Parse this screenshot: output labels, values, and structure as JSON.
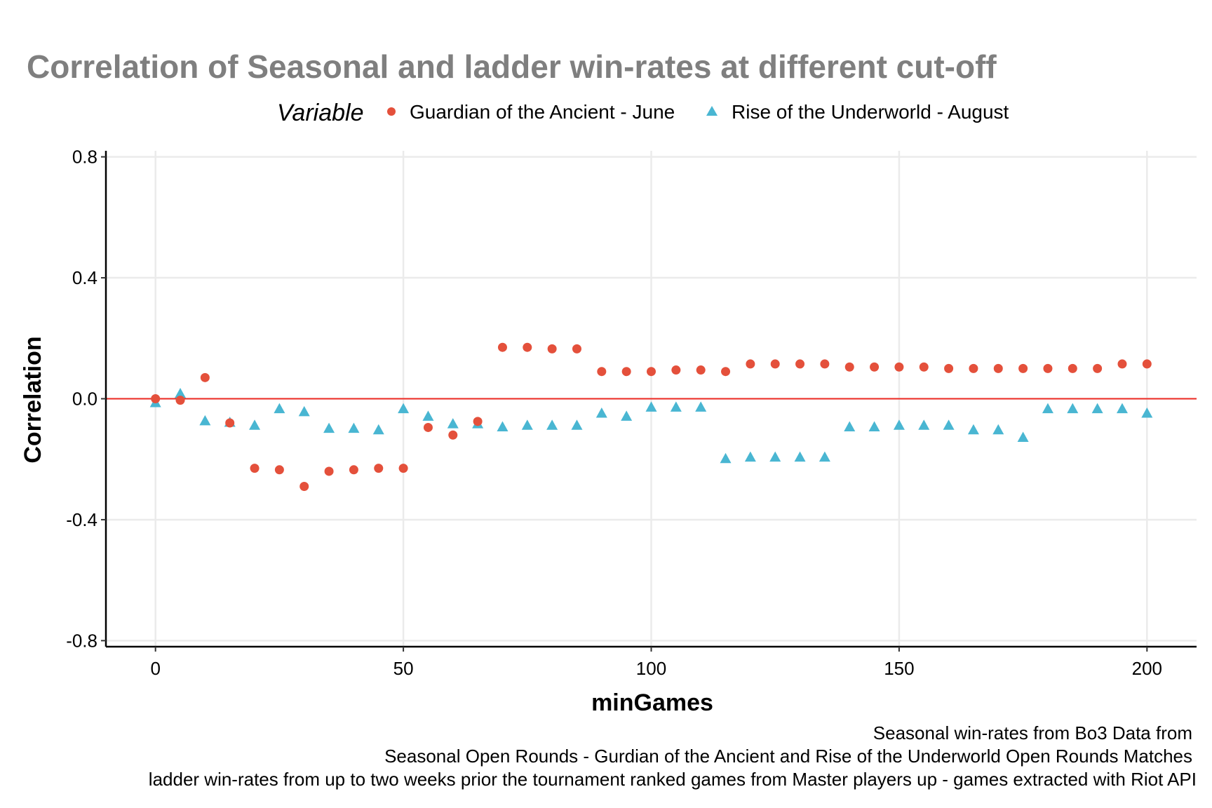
{
  "chart_data": {
    "type": "scatter",
    "title": "Correlation of Seasonal and ladder win-rates at different cut-off",
    "xlabel": "minGames",
    "ylabel": "Correlation",
    "xlim": [
      -10,
      210
    ],
    "ylim": [
      -0.82,
      0.82
    ],
    "x_ticks": [
      0,
      50,
      100,
      150,
      200
    ],
    "x_tick_labels": [
      "0",
      "50",
      "100",
      "150",
      "200"
    ],
    "y_ticks": [
      0.8,
      0.4,
      0.0,
      -0.4,
      -0.8
    ],
    "y_tick_labels": [
      "0.8",
      "0.4",
      "0.0",
      "-0.4",
      "-0.8"
    ],
    "grid": true,
    "reference_line": {
      "y": 0.0,
      "color": "#ee2a24"
    },
    "legend": {
      "title": "Variable",
      "placement": "top"
    },
    "x": [
      0,
      5,
      10,
      15,
      20,
      25,
      30,
      35,
      40,
      45,
      50,
      55,
      60,
      65,
      70,
      75,
      80,
      85,
      90,
      95,
      100,
      105,
      110,
      115,
      120,
      125,
      130,
      135,
      140,
      145,
      150,
      155,
      160,
      165,
      170,
      175,
      180,
      185,
      190,
      195,
      200
    ],
    "series": [
      {
        "name": "Guardian of the Ancient - June",
        "marker": "circle",
        "color": "#e4503b",
        "values": [
          0.0,
          -0.005,
          0.07,
          -0.08,
          -0.23,
          -0.235,
          -0.29,
          -0.24,
          -0.235,
          -0.23,
          -0.23,
          -0.095,
          -0.12,
          -0.075,
          0.17,
          0.17,
          0.165,
          0.165,
          0.09,
          0.09,
          0.09,
          0.095,
          0.095,
          0.09,
          0.115,
          0.115,
          0.115,
          0.115,
          0.105,
          0.105,
          0.105,
          0.105,
          0.1,
          0.1,
          0.1,
          0.1,
          0.1,
          0.1,
          0.1,
          0.115,
          0.115
        ]
      },
      {
        "name": "Rise of the Underworld - August",
        "marker": "triangle",
        "color": "#49b6d2",
        "values": [
          -0.015,
          0.015,
          -0.075,
          -0.08,
          -0.09,
          -0.035,
          -0.045,
          -0.1,
          -0.1,
          -0.105,
          -0.035,
          -0.06,
          -0.085,
          -0.085,
          -0.095,
          -0.09,
          -0.09,
          -0.09,
          -0.05,
          -0.06,
          -0.03,
          -0.03,
          -0.03,
          -0.2,
          -0.195,
          -0.195,
          -0.195,
          -0.195,
          -0.095,
          -0.095,
          -0.09,
          -0.09,
          -0.09,
          -0.105,
          -0.105,
          -0.13,
          -0.035,
          -0.035,
          -0.035,
          -0.035,
          -0.05
        ]
      }
    ],
    "caption": [
      "Seasonal win-rates from Bo3 Data from",
      "Seasonal Open Rounds - Gurdian of the Ancient and Rise of the Underworld Open Rounds Matches",
      "ladder win-rates from up to two weeks prior the tournament ranked games from Master players up - games extracted with Riot API"
    ]
  }
}
